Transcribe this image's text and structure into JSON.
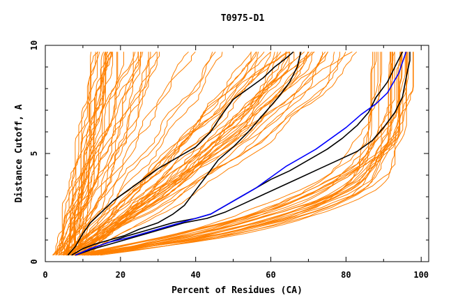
{
  "chart_data": {
    "type": "line",
    "title": "T0975-D1",
    "xlabel": "Percent of Residues (CA)",
    "ylabel": "Distance Cutoff, A",
    "xlim": [
      0,
      102
    ],
    "ylim": [
      0,
      10
    ],
    "x_ticks": [
      0,
      20,
      40,
      60,
      80,
      100
    ],
    "y_ticks": [
      0,
      5,
      10
    ],
    "grid": false,
    "legend": "none",
    "colors": {
      "models": "#ff8000",
      "highlight_black": "#000000",
      "highlight_blue": "#0000ff"
    },
    "highlight_series": [
      {
        "color": "#000000",
        "points": [
          [
            6,
            0.3
          ],
          [
            8,
            0.7
          ],
          [
            10,
            1.3
          ],
          [
            12,
            1.8
          ],
          [
            15,
            2.3
          ],
          [
            18,
            2.8
          ],
          [
            22,
            3.3
          ],
          [
            26,
            3.8
          ],
          [
            30,
            4.3
          ],
          [
            35,
            4.8
          ],
          [
            40,
            5.3
          ],
          [
            44,
            6.0
          ],
          [
            47,
            6.8
          ],
          [
            50,
            7.5
          ],
          [
            54,
            8.0
          ],
          [
            58,
            8.5
          ],
          [
            61,
            9.0
          ],
          [
            64,
            9.4
          ],
          [
            66,
            9.7
          ]
        ]
      },
      {
        "color": "#000000",
        "points": [
          [
            7,
            0.3
          ],
          [
            10,
            0.6
          ],
          [
            13,
            0.8
          ],
          [
            17,
            1.0
          ],
          [
            21,
            1.2
          ],
          [
            25,
            1.5
          ],
          [
            30,
            1.8
          ],
          [
            34,
            2.2
          ],
          [
            37,
            2.6
          ],
          [
            40,
            3.3
          ],
          [
            43,
            4.0
          ],
          [
            46,
            4.7
          ],
          [
            50,
            5.3
          ],
          [
            54,
            6.0
          ],
          [
            58,
            6.8
          ],
          [
            62,
            7.6
          ],
          [
            65,
            8.3
          ],
          [
            67,
            9.0
          ],
          [
            68,
            9.7
          ]
        ]
      },
      {
        "color": "#000000",
        "points": [
          [
            8,
            0.3
          ],
          [
            12,
            0.6
          ],
          [
            17,
            0.9
          ],
          [
            22,
            1.2
          ],
          [
            28,
            1.5
          ],
          [
            34,
            1.8
          ],
          [
            40,
            2.0
          ],
          [
            44,
            2.2
          ],
          [
            48,
            2.6
          ],
          [
            52,
            3.0
          ],
          [
            56,
            3.4
          ],
          [
            60,
            3.8
          ],
          [
            65,
            4.2
          ],
          [
            70,
            4.7
          ],
          [
            75,
            5.2
          ],
          [
            79,
            5.7
          ],
          [
            83,
            6.3
          ],
          [
            86,
            6.9
          ],
          [
            88,
            7.6
          ],
          [
            91,
            8.3
          ],
          [
            93,
            9.0
          ],
          [
            95,
            9.7
          ]
        ]
      },
      {
        "color": "#000000",
        "points": [
          [
            8,
            0.3
          ],
          [
            13,
            0.6
          ],
          [
            19,
            0.9
          ],
          [
            25,
            1.2
          ],
          [
            31,
            1.5
          ],
          [
            37,
            1.8
          ],
          [
            43,
            2.0
          ],
          [
            48,
            2.3
          ],
          [
            53,
            2.7
          ],
          [
            58,
            3.1
          ],
          [
            63,
            3.5
          ],
          [
            68,
            3.9
          ],
          [
            73,
            4.3
          ],
          [
            78,
            4.7
          ],
          [
            83,
            5.1
          ],
          [
            87,
            5.6
          ],
          [
            90,
            6.2
          ],
          [
            93,
            6.9
          ],
          [
            95,
            7.6
          ],
          [
            96,
            8.5
          ],
          [
            97,
            9.3
          ],
          [
            97,
            9.7
          ]
        ]
      },
      {
        "color": "#0000ff",
        "points": [
          [
            8,
            0.3
          ],
          [
            12,
            0.6
          ],
          [
            17,
            0.9
          ],
          [
            22,
            1.1
          ],
          [
            28,
            1.4
          ],
          [
            34,
            1.7
          ],
          [
            40,
            2.0
          ],
          [
            44,
            2.2
          ],
          [
            48,
            2.6
          ],
          [
            52,
            3.0
          ],
          [
            56,
            3.4
          ],
          [
            60,
            3.9
          ],
          [
            64,
            4.4
          ],
          [
            68,
            4.8
          ],
          [
            72,
            5.2
          ],
          [
            76,
            5.7
          ],
          [
            80,
            6.2
          ],
          [
            84,
            6.8
          ],
          [
            88,
            7.3
          ],
          [
            91,
            7.8
          ],
          [
            94,
            8.7
          ],
          [
            96,
            9.7
          ]
        ]
      }
    ]
  }
}
